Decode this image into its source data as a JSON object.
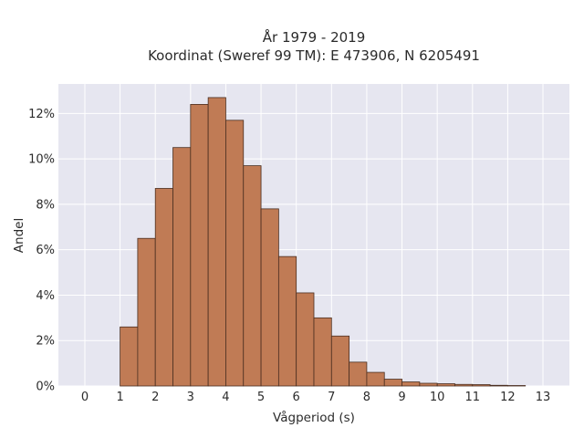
{
  "chart_data": {
    "type": "bar",
    "title": "År 1979 - 2019",
    "subtitle": "Koordinat (Sweref 99 TM): E 473906, N 6205491",
    "xlabel": "Vågperiod (s)",
    "ylabel": "Andel",
    "xlim": [
      -0.75,
      13.75
    ],
    "ylim": [
      0,
      13.3
    ],
    "x_ticks": [
      0,
      1,
      2,
      3,
      4,
      5,
      6,
      7,
      8,
      9,
      10,
      11,
      12,
      13
    ],
    "y_ticks": [
      0,
      2,
      4,
      6,
      8,
      10,
      12
    ],
    "y_tick_suffix": "%",
    "bin_width": 0.5,
    "bins": [
      {
        "start": 1.0,
        "value": 2.6
      },
      {
        "start": 1.5,
        "value": 6.5
      },
      {
        "start": 2.0,
        "value": 8.7
      },
      {
        "start": 2.5,
        "value": 10.5
      },
      {
        "start": 3.0,
        "value": 12.4
      },
      {
        "start": 3.5,
        "value": 12.7
      },
      {
        "start": 4.0,
        "value": 11.7
      },
      {
        "start": 4.5,
        "value": 9.7
      },
      {
        "start": 5.0,
        "value": 7.8
      },
      {
        "start": 5.5,
        "value": 5.7
      },
      {
        "start": 6.0,
        "value": 4.1
      },
      {
        "start": 6.5,
        "value": 3.0
      },
      {
        "start": 7.0,
        "value": 2.2
      },
      {
        "start": 7.5,
        "value": 1.05
      },
      {
        "start": 8.0,
        "value": 0.6
      },
      {
        "start": 8.5,
        "value": 0.3
      },
      {
        "start": 9.0,
        "value": 0.18
      },
      {
        "start": 9.5,
        "value": 0.12
      },
      {
        "start": 10.0,
        "value": 0.1
      },
      {
        "start": 10.5,
        "value": 0.07
      },
      {
        "start": 11.0,
        "value": 0.06
      },
      {
        "start": 11.5,
        "value": 0.03
      },
      {
        "start": 12.0,
        "value": 0.02
      }
    ],
    "grid": true,
    "colors": {
      "bar_fill": "#c07b55",
      "bar_stroke": "#4a2e20",
      "plot_bg": "#e6e6f0",
      "grid": "#ffffff"
    }
  }
}
